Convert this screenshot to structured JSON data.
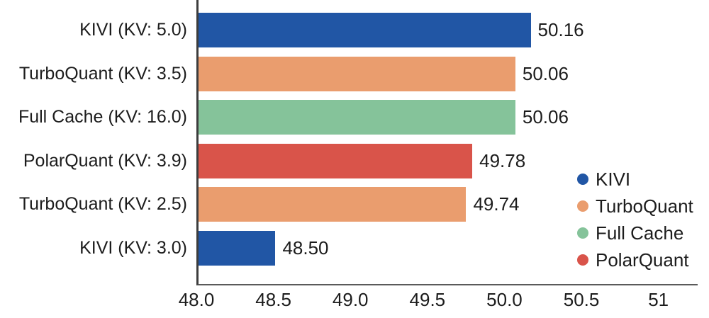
{
  "chart_data": {
    "type": "bar",
    "orientation": "horizontal",
    "title": "",
    "xlabel": "",
    "ylabel": "",
    "grid": false,
    "categories": [
      "KIVI (KV: 5.0)",
      "TurboQuant (KV: 3.5)",
      "Full Cache (KV: 16.0)",
      "PolarQuant (KV: 3.9)",
      "TurboQuant (KV: 2.5)",
      "KIVI (KV: 3.0)"
    ],
    "values": [
      50.16,
      50.06,
      50.06,
      49.78,
      49.74,
      48.5
    ],
    "value_labels": [
      "50.16",
      "50.06",
      "50.06",
      "49.78",
      "49.74",
      "48.50"
    ],
    "bar_series": [
      "KIVI",
      "TurboQuant",
      "Full Cache",
      "PolarQuant",
      "TurboQuant",
      "KIVI"
    ],
    "xlim": [
      48.0,
      51.25
    ],
    "x_ticks": [
      {
        "value": 48.0,
        "label": "48.0"
      },
      {
        "value": 48.5,
        "label": "48.5"
      },
      {
        "value": 49.0,
        "label": "49.0"
      },
      {
        "value": 49.5,
        "label": "49.5"
      },
      {
        "value": 50.0,
        "label": "50.0"
      },
      {
        "value": 50.5,
        "label": "50.5"
      },
      {
        "value": 51.0,
        "label": "51"
      }
    ],
    "legend_position": "right-middle",
    "legend": [
      {
        "name": "KIVI",
        "color": "#2156A5"
      },
      {
        "name": "TurboQuant",
        "color": "#EA9D6E"
      },
      {
        "name": "Full Cache",
        "color": "#85C39A"
      },
      {
        "name": "PolarQuant",
        "color": "#D9544A"
      }
    ],
    "colors": {
      "axis_line": "#3d3d3d",
      "text": "#1c1c1c",
      "background": "#ffffff"
    }
  }
}
